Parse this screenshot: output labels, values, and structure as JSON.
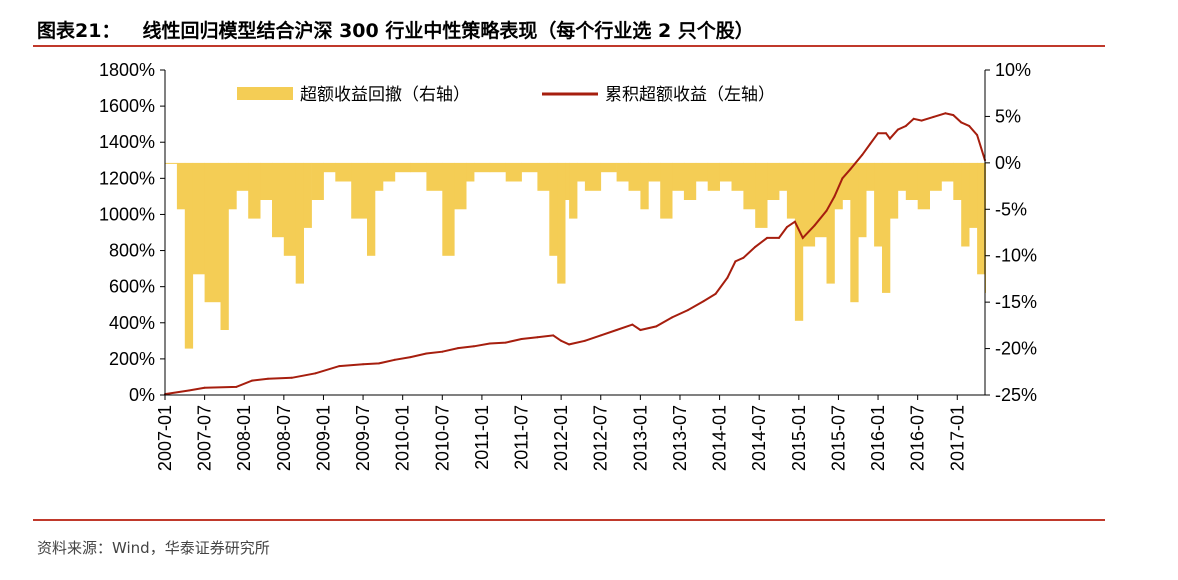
{
  "header": {
    "label": "图表21：",
    "title": "线性回归模型结合沪深 300 行业中性策略表现（每个行业选 2 只个股）"
  },
  "footer": {
    "source": "资料来源：Wind，华泰证券研究所"
  },
  "colors": {
    "accent_rule": "#c0392b",
    "line_color": "#a61e0e",
    "bar_color": "#f4cd55"
  },
  "chart_data": {
    "type": "line",
    "secondary_type": "bar",
    "legend": [
      "超额收益回撤（右轴）",
      "累积超额收益（左轴）"
    ],
    "legend_position": "top-center",
    "grid": false,
    "x_ticks": [
      "2007-01",
      "2007-07",
      "2008-01",
      "2008-07",
      "2009-01",
      "2009-07",
      "2010-01",
      "2010-07",
      "2011-01",
      "2011-07",
      "2012-01",
      "2012-07",
      "2013-01",
      "2013-07",
      "2014-01",
      "2014-07",
      "2015-01",
      "2015-07",
      "2016-01",
      "2016-07",
      "2017-01"
    ],
    "y_left": {
      "ticks": [
        "0%",
        "200%",
        "400%",
        "600%",
        "800%",
        "1000%",
        "1200%",
        "1400%",
        "1600%",
        "1800%"
      ],
      "range": [
        0,
        1800
      ]
    },
    "y_right": {
      "ticks": [
        "10%",
        "5%",
        "0%",
        "-5%",
        "-10%",
        "-15%",
        "-20%",
        "-25%"
      ],
      "range": [
        -25,
        10
      ]
    },
    "x_range": [
      2007.0,
      2017.35
    ],
    "series": [
      {
        "name": "累积超额收益（左轴）",
        "axis": "left",
        "x": [
          2007.0,
          2007.3,
          2007.5,
          2007.9,
          2008.1,
          2008.3,
          2008.6,
          2008.9,
          2009.2,
          2009.5,
          2009.7,
          2009.9,
          2010.1,
          2010.3,
          2010.5,
          2010.7,
          2010.9,
          2011.1,
          2011.3,
          2011.5,
          2011.7,
          2011.9,
          2012.0,
          2012.1,
          2012.3,
          2012.5,
          2012.7,
          2012.9,
          2013.0,
          2013.2,
          2013.4,
          2013.6,
          2013.8,
          2013.95,
          2014.1,
          2014.2,
          2014.3,
          2014.45,
          2014.6,
          2014.75,
          2014.85,
          2014.95,
          2015.05,
          2015.2,
          2015.35,
          2015.45,
          2015.55,
          2015.65,
          2015.8,
          2015.9,
          2016.0,
          2016.1,
          2016.15,
          2016.25,
          2016.35,
          2016.45,
          2016.55,
          2016.7,
          2016.85,
          2016.95,
          2017.05,
          2017.15,
          2017.25,
          2017.35
        ],
        "y": [
          5,
          25,
          40,
          45,
          80,
          90,
          95,
          120,
          160,
          170,
          175,
          195,
          210,
          230,
          240,
          260,
          270,
          285,
          290,
          310,
          320,
          330,
          300,
          280,
          300,
          330,
          360,
          390,
          360,
          380,
          430,
          470,
          520,
          560,
          650,
          740,
          760,
          820,
          870,
          870,
          930,
          960,
          870,
          940,
          1020,
          1100,
          1200,
          1250,
          1330,
          1390,
          1450,
          1450,
          1420,
          1470,
          1490,
          1530,
          1520,
          1540,
          1560,
          1550,
          1510,
          1490,
          1440,
          1300
        ]
      },
      {
        "name": "超额收益回撤（右轴）",
        "axis": "right",
        "x": [
          2007.0,
          2007.15,
          2007.25,
          2007.35,
          2007.5,
          2007.7,
          2007.8,
          2007.9,
          2008.05,
          2008.2,
          2008.35,
          2008.5,
          2008.65,
          2008.75,
          2008.85,
          2009.0,
          2009.15,
          2009.35,
          2009.55,
          2009.65,
          2009.75,
          2009.9,
          2010.1,
          2010.3,
          2010.5,
          2010.65,
          2010.8,
          2010.9,
          2011.1,
          2011.3,
          2011.5,
          2011.7,
          2011.85,
          2011.95,
          2012.05,
          2012.1,
          2012.2,
          2012.3,
          2012.5,
          2012.7,
          2012.85,
          2013.0,
          2013.1,
          2013.25,
          2013.4,
          2013.55,
          2013.7,
          2013.85,
          2014.0,
          2014.15,
          2014.3,
          2014.45,
          2014.6,
          2014.75,
          2014.85,
          2014.95,
          2015.05,
          2015.2,
          2015.35,
          2015.45,
          2015.55,
          2015.65,
          2015.75,
          2015.85,
          2015.95,
          2016.05,
          2016.15,
          2016.25,
          2016.35,
          2016.5,
          2016.65,
          2016.8,
          2016.95,
          2017.05,
          2017.15,
          2017.25,
          2017.35
        ],
        "values": [
          0,
          -5,
          -20,
          -12,
          -15,
          -18,
          -5,
          -3,
          -6,
          -4,
          -8,
          -10,
          -13,
          -7,
          -4,
          -1,
          -2,
          -6,
          -10,
          -3,
          -2,
          -1,
          -1,
          -3,
          -10,
          -5,
          -2,
          -1,
          -1,
          -2,
          -1,
          -3,
          -10,
          -13,
          -4,
          -6,
          -2,
          -3,
          -1,
          -2,
          -3,
          -5,
          -2,
          -6,
          -3,
          -4,
          -2,
          -3,
          -2,
          -3,
          -5,
          -7,
          -4,
          -3,
          -6,
          -17,
          -9,
          -8,
          -13,
          -5,
          -4,
          -15,
          -8,
          -3,
          -9,
          -14,
          -6,
          -3,
          -4,
          -5,
          -3,
          -2,
          -4,
          -9,
          -7,
          -12,
          -14
        ]
      }
    ]
  }
}
